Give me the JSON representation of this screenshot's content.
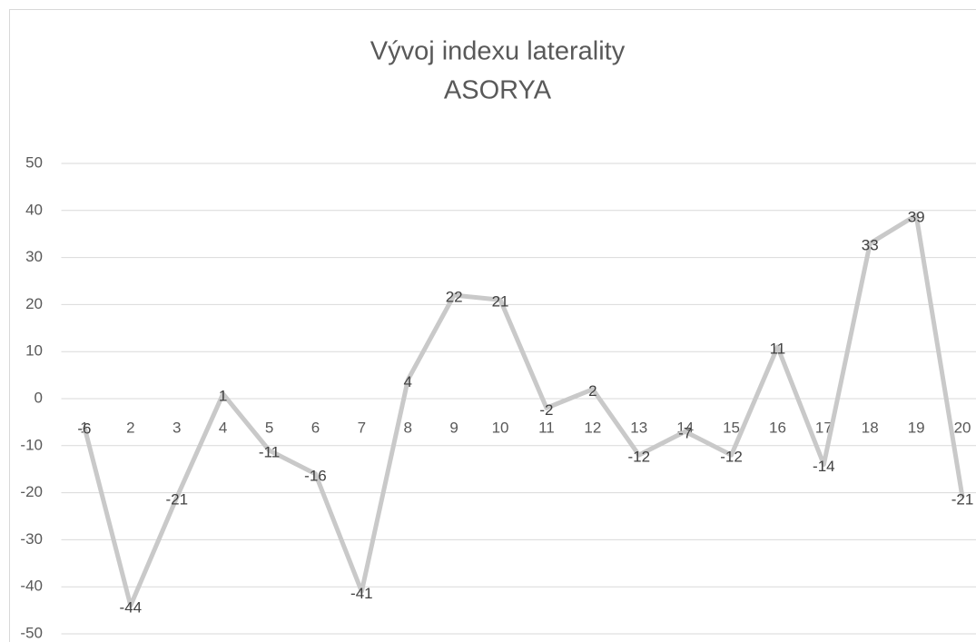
{
  "chart_data": {
    "type": "line",
    "title": [
      "Vývoj indexu laterality",
      "ASORYA"
    ],
    "categories": [
      "1",
      "2",
      "3",
      "4",
      "5",
      "6",
      "7",
      "8",
      "9",
      "10",
      "11",
      "12",
      "13",
      "14",
      "15",
      "16",
      "17",
      "18",
      "19",
      "20"
    ],
    "series": [
      {
        "color": "#c9c9c9",
        "values": [
          -6,
          -44,
          -21,
          1,
          -11,
          -16,
          -41,
          4,
          22,
          21,
          -2,
          2,
          -12,
          -7,
          -12,
          11,
          -14,
          33,
          39,
          -21
        ]
      }
    ],
    "ylim": [
      -50,
      50
    ],
    "yticks": [
      -50,
      -40,
      -30,
      -20,
      -10,
      0,
      10,
      20,
      30,
      40,
      50
    ],
    "grid": true,
    "data_labels": true
  }
}
